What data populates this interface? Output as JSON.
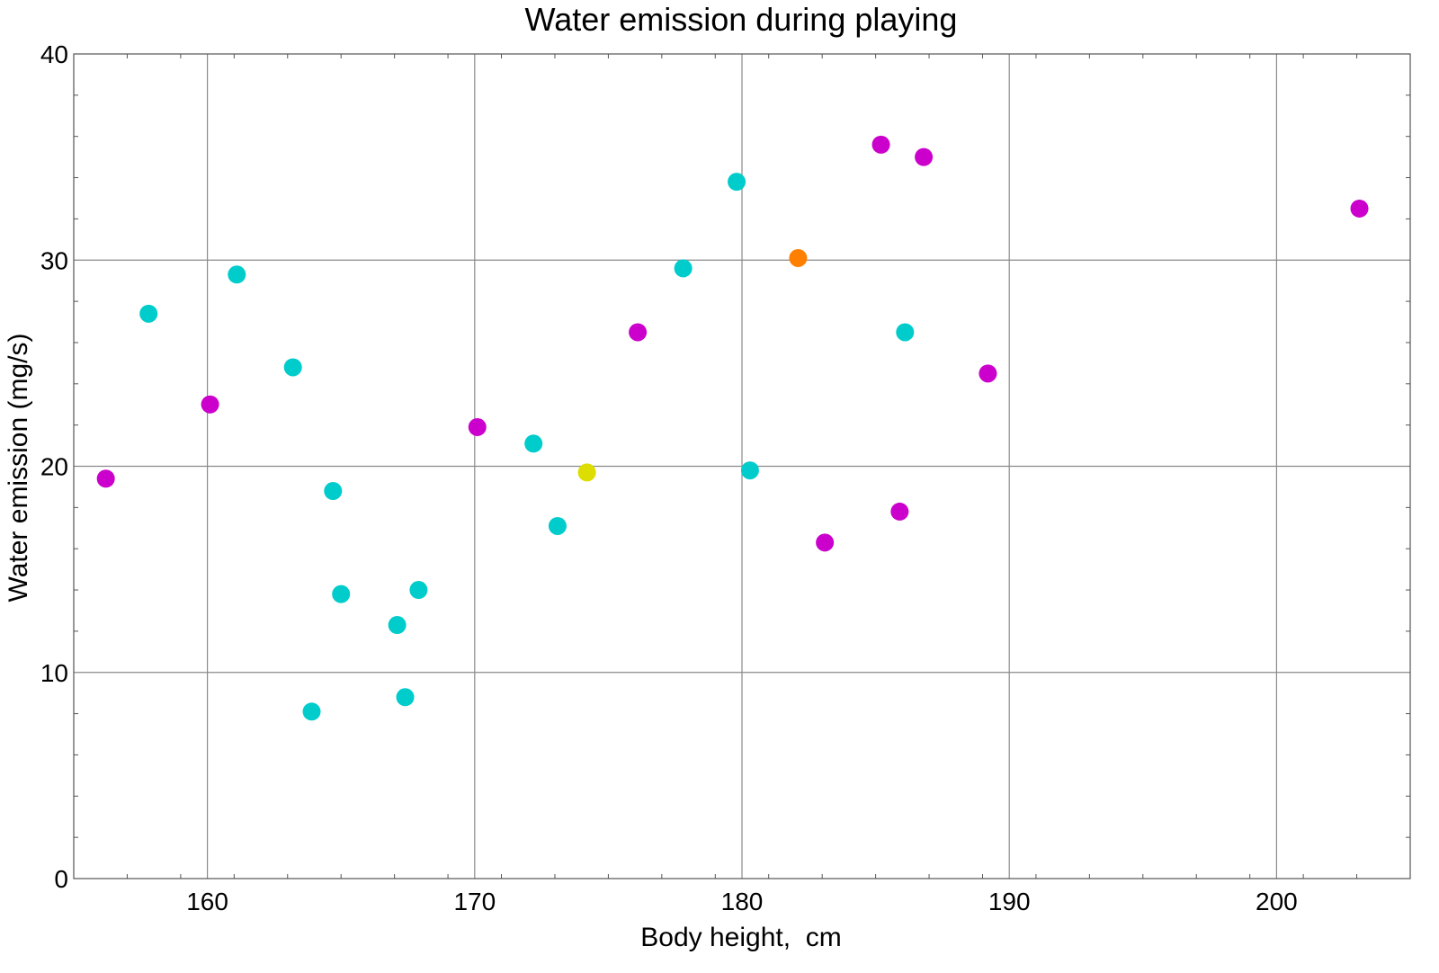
{
  "chart_data": {
    "type": "scatter",
    "title": "Water emission during playing",
    "xlabel": "Body height,  cm",
    "ylabel": "Water emission (mg/s)",
    "xlim": [
      155,
      205
    ],
    "ylim": [
      0,
      40
    ],
    "x_ticks": [
      160,
      170,
      180,
      190,
      200
    ],
    "y_ticks": [
      0,
      10,
      20,
      30,
      40
    ],
    "x_tick_labels": [
      "160",
      "170",
      "180",
      "190",
      "200"
    ],
    "y_tick_labels": [
      "0",
      "10",
      "20",
      "30",
      "40"
    ],
    "grid": true,
    "series": [
      {
        "color": "#00cccc",
        "points": [
          {
            "x": 157.8,
            "y": 27.4
          },
          {
            "x": 161.1,
            "y": 29.3
          },
          {
            "x": 163.2,
            "y": 24.8
          },
          {
            "x": 164.7,
            "y": 18.8
          },
          {
            "x": 165.0,
            "y": 13.8
          },
          {
            "x": 163.9,
            "y": 8.1
          },
          {
            "x": 167.1,
            "y": 12.3
          },
          {
            "x": 167.4,
            "y": 8.8
          },
          {
            "x": 167.9,
            "y": 14.0
          },
          {
            "x": 172.2,
            "y": 21.1
          },
          {
            "x": 173.1,
            "y": 17.1
          },
          {
            "x": 177.8,
            "y": 29.6
          },
          {
            "x": 179.8,
            "y": 33.8
          },
          {
            "x": 180.3,
            "y": 19.8
          },
          {
            "x": 186.1,
            "y": 26.5
          }
        ]
      },
      {
        "color": "#cc00cc",
        "points": [
          {
            "x": 156.2,
            "y": 19.4
          },
          {
            "x": 160.1,
            "y": 23.0
          },
          {
            "x": 170.1,
            "y": 21.9
          },
          {
            "x": 176.1,
            "y": 26.5
          },
          {
            "x": 183.1,
            "y": 16.3
          },
          {
            "x": 185.2,
            "y": 35.6
          },
          {
            "x": 185.9,
            "y": 17.8
          },
          {
            "x": 186.8,
            "y": 35.0
          },
          {
            "x": 189.2,
            "y": 24.5
          },
          {
            "x": 203.1,
            "y": 32.5
          }
        ]
      },
      {
        "color": "#dddd00",
        "points": [
          {
            "x": 174.2,
            "y": 19.7
          }
        ]
      },
      {
        "color": "#ff8000",
        "points": [
          {
            "x": 182.1,
            "y": 30.1
          }
        ]
      }
    ]
  }
}
